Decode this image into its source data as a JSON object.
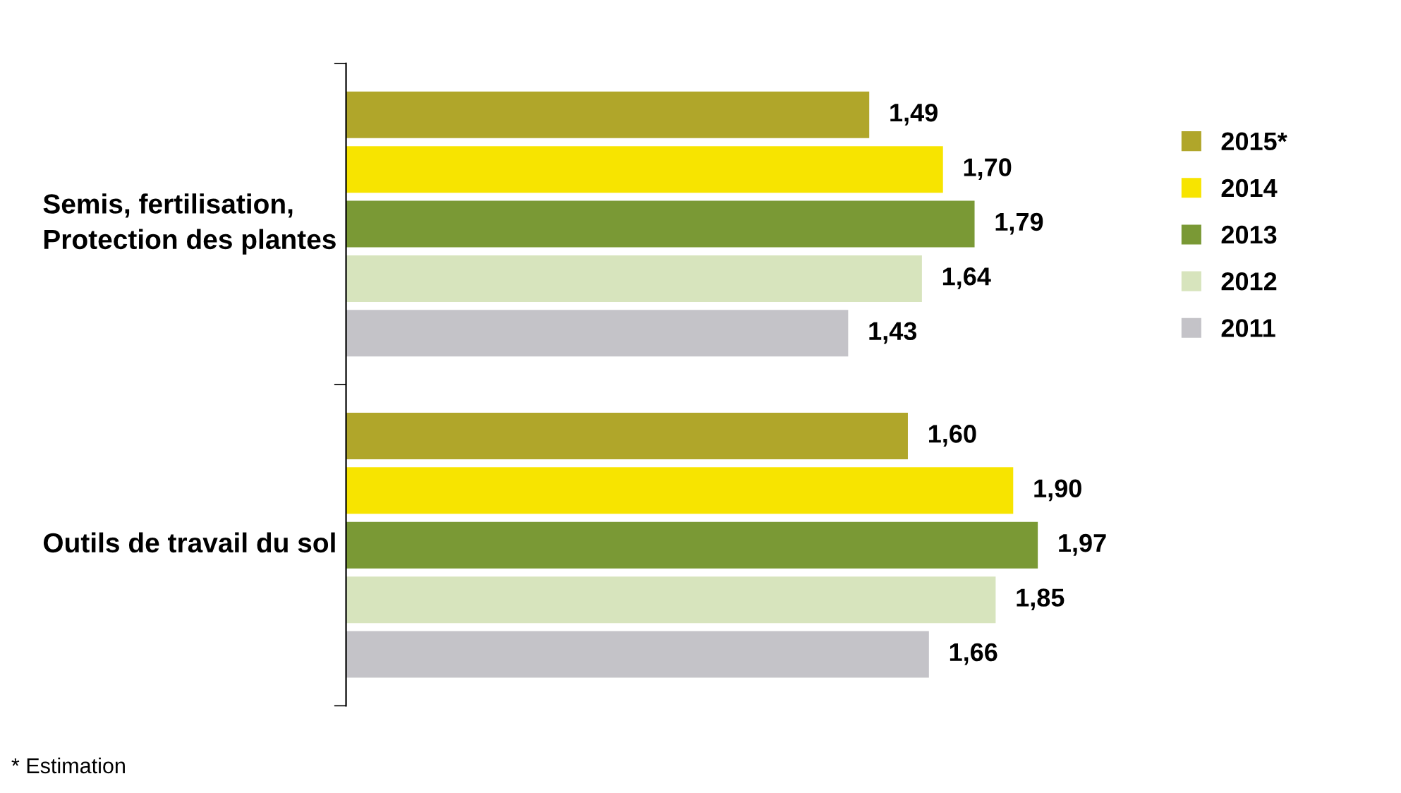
{
  "chart_data": {
    "type": "bar",
    "orientation": "horizontal",
    "categories": [
      "Semis, fertilisation, Protection des plantes",
      "Outils de travail du sol"
    ],
    "series": [
      {
        "name": "2015*",
        "color": "#b0a62a",
        "values": [
          1.49,
          1.6
        ],
        "value_labels": [
          "1,49",
          "1,60"
        ]
      },
      {
        "name": "2014",
        "color": "#f7e400",
        "values": [
          1.7,
          1.9
        ],
        "value_labels": [
          "1,70",
          "1,90"
        ]
      },
      {
        "name": "2013",
        "color": "#7a9935",
        "values": [
          1.79,
          1.97
        ],
        "value_labels": [
          "1,79",
          "1,97"
        ]
      },
      {
        "name": "2012",
        "color": "#d7e4bd",
        "values": [
          1.64,
          1.85
        ],
        "value_labels": [
          "1,64",
          "1,85"
        ]
      },
      {
        "name": "2011",
        "color": "#c4c3c8",
        "values": [
          1.43,
          1.66
        ],
        "value_labels": [
          "1,43",
          "1,66"
        ]
      }
    ],
    "tick_labels": "y",
    "legend": "right",
    "annotations": [
      "* Estimation"
    ]
  }
}
